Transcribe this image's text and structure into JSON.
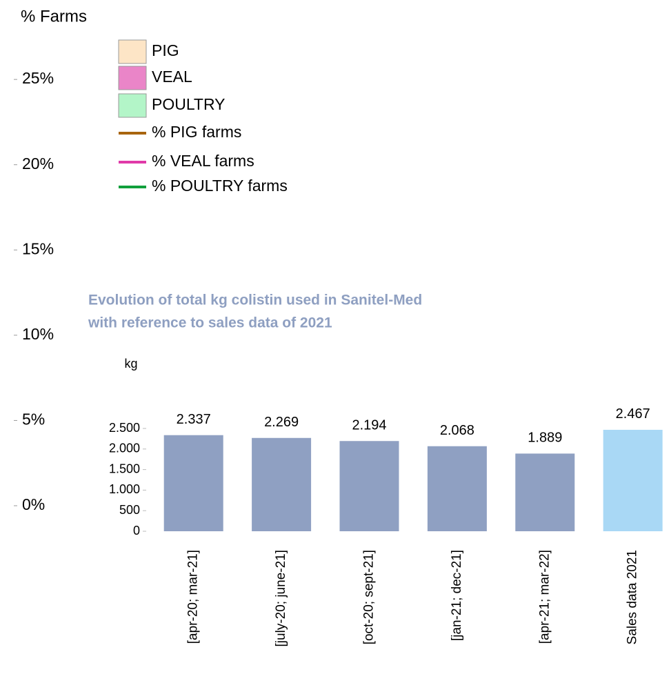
{
  "chart_data": [
    {
      "type": "bar",
      "ylabel": "% Farms",
      "ylim": [
        0,
        28
      ],
      "yticks": [
        {
          "value": 0,
          "label": "0%"
        },
        {
          "value": 5,
          "label": "5%"
        },
        {
          "value": 10,
          "label": "10%"
        },
        {
          "value": 15,
          "label": "15%"
        },
        {
          "value": 20,
          "label": "20%"
        },
        {
          "value": 25,
          "label": "25%"
        }
      ],
      "series": [
        {
          "name": "PIG",
          "color": "#fde5c6",
          "type": "bar"
        },
        {
          "name": "VEAL",
          "color": "#ea85c8",
          "type": "bar"
        },
        {
          "name": "POULTRY",
          "color": "#b3f5c8",
          "type": "bar"
        },
        {
          "name": "% PIG farms",
          "color": "#a8650e",
          "type": "line"
        },
        {
          "name": "% VEAL farms",
          "color": "#e03aa8",
          "type": "line"
        },
        {
          "name": "% POULTRY farms",
          "color": "#10a03c",
          "type": "line"
        }
      ]
    },
    {
      "type": "bar",
      "title": [
        "Evolution of total kg colistin used in Sanitel-Med",
        "with reference to sales data of 2021"
      ],
      "ylabel": "kg",
      "categories": [
        "[apr-20; mar-21]",
        "[july-20; june-21]",
        "[oct-20; sept-21]",
        "[jan-21; dec-21]",
        "[apr-21; mar-22]",
        "Sales data 2021"
      ],
      "values": [
        2337,
        2269,
        2194,
        2068,
        1889,
        2467
      ],
      "value_labels": [
        "2.337",
        "2.269",
        "2.194",
        "2.068",
        "1.889",
        "2.467"
      ],
      "colors": [
        "#8fa0c2",
        "#8fa0c2",
        "#8fa0c2",
        "#8fa0c2",
        "#8fa0c2",
        "#a9d8f5"
      ],
      "ylim": [
        0,
        2500
      ],
      "yticks": [
        0,
        500,
        {
          "value": 1000,
          "label": "1.000"
        },
        {
          "value": 1500,
          "label": "1.500"
        },
        {
          "value": 2000,
          "label": "2.000"
        },
        {
          "value": 2500,
          "label": "2.500"
        }
      ]
    }
  ]
}
